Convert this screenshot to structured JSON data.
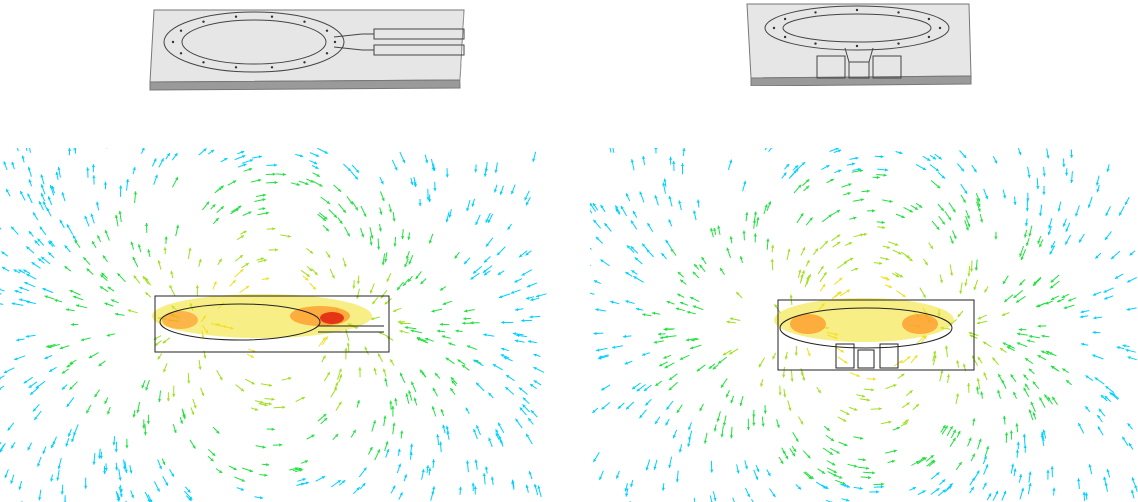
{
  "figure": {
    "panels": [
      {
        "id": "left",
        "model": "pcb-ring-antenna-side-feed",
        "field_view": "field-arrows-side-feed"
      },
      {
        "id": "right",
        "model": "pcb-ring-antenna-bottom-feed",
        "field_view": "field-arrows-bottom-feed"
      }
    ],
    "colormap": [
      "#00d0ff",
      "#22e040",
      "#a0e020",
      "#f0e020",
      "#ff9020",
      "#e02010"
    ],
    "board_color": "#e4e4e4",
    "board_edge_color": "#8a8a8a"
  }
}
